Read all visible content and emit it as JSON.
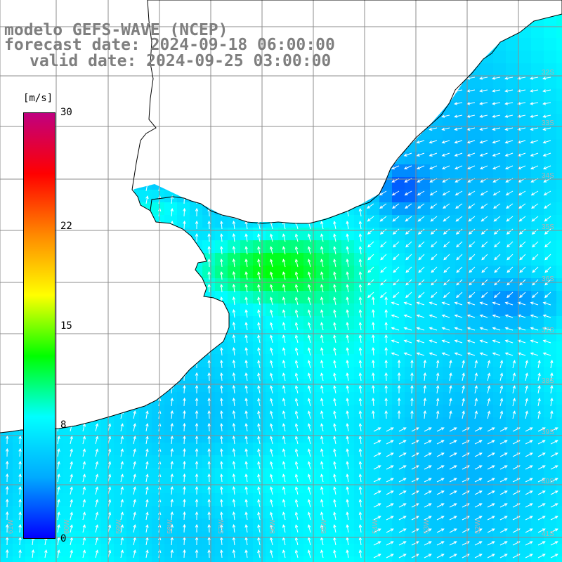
{
  "title": {
    "line1": "modelo GEFS-WAVE (NCEP)",
    "line2": "forecast date: 2024-09-18 06:00:00",
    "line3": "valid date: 2024-09-25 03:00:00"
  },
  "colorbar": {
    "unit": "[m/s]",
    "min": 0,
    "max": 30,
    "stops": [
      "#0000ff",
      "#00aaff",
      "#00ffff",
      "#00ff00",
      "#ffff00",
      "#ff8800",
      "#ff0000",
      "#c00080"
    ],
    "tick_labels": [
      {
        "label": "30",
        "value": 30
      },
      {
        "label": "22",
        "value": 22
      },
      {
        "label": "15",
        "value": 15
      },
      {
        "label": "8",
        "value": 8
      },
      {
        "label": "0",
        "value": 0
      }
    ]
  },
  "map": {
    "projection": "lat-lon",
    "lon_range": [
      -62.5,
      -51.5
    ],
    "lat_range": [
      -41.5,
      -30.5
    ],
    "grid_lines": true,
    "latitude_labels": [
      "32S",
      "33S",
      "34S",
      "35S",
      "36S",
      "37S",
      "38S",
      "39S",
      "40S",
      "41S"
    ],
    "longitude_labels": [
      "61W",
      "60W",
      "59W",
      "58W",
      "57W",
      "56W",
      "55W",
      "54W",
      "53W",
      "52W"
    ],
    "colors": {
      "land": "#ffffff",
      "coast": "#000000",
      "grid": "#8c8c8c",
      "arrows": "#ffffff"
    },
    "wind_cells": "scalar wind speed field with direction arrows over ocean"
  }
}
